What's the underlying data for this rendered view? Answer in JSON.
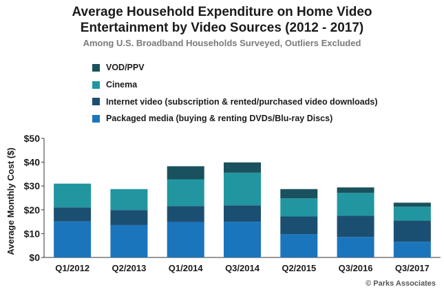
{
  "header": {
    "title_line1": "Average Household Expenditure on Home Video",
    "title_line2": "Entertainment by Video Sources (2012 - 2017)",
    "subtitle": "Among U.S. Broadband Households Surveyed, Outliers Excluded"
  },
  "credit": "© Parks Associates",
  "chart_data": {
    "type": "bar",
    "stacked": true,
    "title": "Average Household Expenditure on Home Video Entertainment by Video Sources (2012 - 2017)",
    "subtitle": "Among U.S. Broadband Households Surveyed, Outliers Excluded",
    "xlabel": "",
    "ylabel": "Average Monthly Cost ($)",
    "ylim": [
      0,
      50
    ],
    "yticks": [
      "$0",
      "$10",
      "$20",
      "$30",
      "$40",
      "$50"
    ],
    "grid": false,
    "legend_position": "top-left",
    "categories": [
      "Q1/2012",
      "Q2/2013",
      "Q1/2014",
      "Q3/2014",
      "Q2/2015",
      "Q3/2016",
      "Q3/2017"
    ],
    "series": [
      {
        "name": "Packaged media (buying & renting DVDs/Blu-ray Discs)",
        "color": "#1b75bc",
        "values": [
          15.1,
          13.6,
          14.9,
          15.0,
          9.8,
          8.6,
          6.6
        ]
      },
      {
        "name": "Internet video (subscription & rented/purchased video downloads)",
        "color": "#1b4f72",
        "values": [
          5.9,
          6.3,
          6.7,
          6.9,
          7.4,
          8.9,
          8.9
        ]
      },
      {
        "name": "Cinema",
        "color": "#2196a0",
        "values": [
          10.0,
          8.8,
          11.2,
          13.7,
          7.6,
          9.6,
          5.8
        ]
      },
      {
        "name": "VOD/PPV",
        "color": "#19515e",
        "values": [
          0,
          0,
          5.5,
          4.3,
          3.9,
          2.3,
          1.7
        ]
      }
    ]
  }
}
